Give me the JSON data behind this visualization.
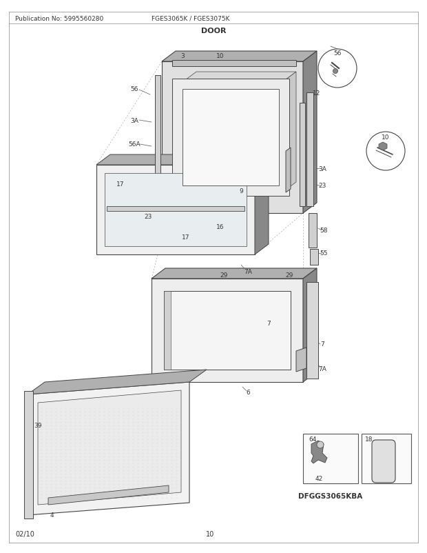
{
  "title": "DOOR",
  "pub_no": "Publication No: 5995560280",
  "model": "FGES3065K / FGES3075K",
  "date": "02/10",
  "page": "10",
  "diagram_label": "DFGGS3065KBA",
  "bg_color": "#ffffff",
  "line_color": "#444444",
  "light_gray": "#e0e0e0",
  "mid_gray": "#b0b0b0",
  "dark_gray": "#888888",
  "dot_gray": "#cccccc"
}
